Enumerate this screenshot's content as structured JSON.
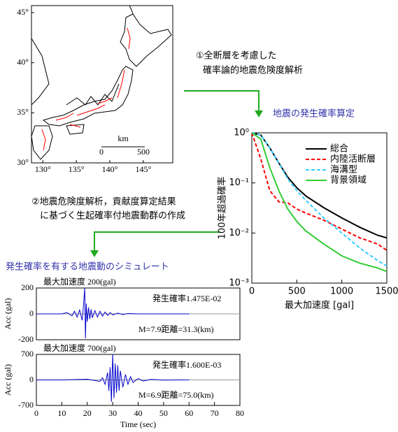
{
  "map": {
    "xlim": [
      128.3,
      149.4
    ],
    "ylim": [
      30,
      45.7
    ],
    "xticks": [
      {
        "value": 130,
        "label": "130°"
      },
      {
        "value": 135,
        "label": "135°"
      },
      {
        "value": 140,
        "label": "140°"
      },
      {
        "value": 145,
        "label": "145°"
      }
    ],
    "yticks": [
      {
        "value": 30,
        "label": "30°"
      },
      {
        "value": 35,
        "label": "35°"
      },
      {
        "value": 40,
        "label": "40°"
      },
      {
        "value": 45,
        "label": "45°"
      }
    ],
    "scale_unit": "km",
    "scale_labels": [
      "0",
      "500"
    ]
  },
  "steps": [
    {
      "lines": [
        "①全断層を考慮した",
        "確率論的地震危険度解析"
      ]
    },
    {
      "lines": [
        "②地震危険度解析，貢献度算定結果",
        "に基づく生起確率付地震動群の作成"
      ]
    }
  ],
  "section_title": "発生確率を有する地震動のシミュレート",
  "chart_data": [
    {
      "type": "line",
      "title": "地震の発生確率算定",
      "xlabel": "最大加速度 [gal]",
      "ylabel": "100年超過確率",
      "xlim": [
        0,
        1500
      ],
      "xticks": [
        0,
        500,
        1000,
        1500
      ],
      "ylim": [
        0.001,
        1
      ],
      "ylog": true,
      "yticks": [
        {
          "value": 0.001,
          "label": "10⁻³"
        },
        {
          "value": 0.01,
          "label": "10⁻²"
        },
        {
          "value": 0.1,
          "label": "10⁻¹"
        },
        {
          "value": 1,
          "label": "10⁰"
        }
      ],
      "legend": "upper right",
      "x": [
        0,
        100,
        200,
        300,
        400,
        500,
        600,
        800,
        1000,
        1200,
        1400,
        1500
      ],
      "series": [
        {
          "name": "総合",
          "color": "#000000",
          "style": "solid",
          "values": [
            1,
            0.9,
            0.5,
            0.25,
            0.13,
            0.08,
            0.055,
            0.032,
            0.02,
            0.013,
            0.009,
            0.008
          ]
        },
        {
          "name": "内陸活断層",
          "color": "#ff0000",
          "style": "dashed",
          "values": [
            1,
            0.3,
            0.07,
            0.042,
            0.04,
            0.03,
            0.025,
            0.018,
            0.012,
            0.008,
            0.006,
            0.0045
          ]
        },
        {
          "name": "海溝型",
          "color": "#33ccff",
          "style": "dashed",
          "values": [
            1,
            0.9,
            0.5,
            0.25,
            0.12,
            0.07,
            0.045,
            0.02,
            0.01,
            0.005,
            0.0028,
            0.0022
          ]
        },
        {
          "name": "背景領域",
          "color": "#33cc33",
          "style": "solid",
          "values": [
            1,
            0.75,
            0.2,
            0.07,
            0.03,
            0.017,
            0.011,
            0.006,
            0.0035,
            0.0025,
            0.002,
            0.0017
          ]
        }
      ]
    },
    {
      "type": "line",
      "title": "最大加速度 200(gal)",
      "annotations": [
        "発生確率1.475E-02",
        "M=7.9距離=31.3(km)"
      ],
      "ylabel": "Acc (gal)",
      "xlim": [
        0,
        80
      ],
      "ylim": [
        -200,
        200
      ],
      "yticks": [
        -200,
        0,
        200
      ],
      "x": [
        0,
        10,
        12,
        14,
        15,
        16,
        17,
        18,
        18.5,
        19,
        19.3,
        19.6,
        20,
        20.5,
        21,
        21.5,
        22,
        23,
        24,
        25,
        26,
        27,
        28,
        29,
        30,
        32,
        34,
        36,
        40,
        50,
        60
      ],
      "series": [
        {
          "color": "#0000cc",
          "values": [
            0,
            0,
            10,
            -15,
            20,
            -25,
            30,
            -50,
            60,
            200,
            -190,
            80,
            -60,
            50,
            -40,
            35,
            -30,
            25,
            -25,
            20,
            -18,
            15,
            -12,
            10,
            -8,
            6,
            -5,
            3,
            0,
            0,
            0
          ]
        }
      ]
    },
    {
      "type": "line",
      "title": "最大加速度 700(gal)",
      "annotations": [
        "発生確率1.600E-03",
        "M=6.9距離=75.0(km)"
      ],
      "ylabel": "Acc (gal)",
      "xlabel": "Time (sec)",
      "xlim": [
        0,
        80
      ],
      "xticks": [
        0,
        10,
        20,
        30,
        40,
        50,
        60,
        70,
        80
      ],
      "ylim": [
        -700,
        700
      ],
      "yticks": [
        -700,
        0,
        700
      ],
      "x": [
        0,
        10,
        20,
        25,
        26,
        27,
        28,
        28.5,
        29,
        29.5,
        30,
        30.5,
        31,
        31.5,
        32,
        32.5,
        33,
        34,
        35,
        36,
        37,
        38,
        40,
        42,
        45,
        50,
        55,
        60
      ],
      "series": [
        {
          "color": "#0000cc",
          "values": [
            0,
            0,
            20,
            -40,
            60,
            -120,
            200,
            -300,
            350,
            -600,
            700,
            -500,
            450,
            -350,
            400,
            -300,
            250,
            -200,
            150,
            -120,
            90,
            -70,
            40,
            -30,
            15,
            -5,
            0,
            0
          ]
        }
      ]
    }
  ]
}
